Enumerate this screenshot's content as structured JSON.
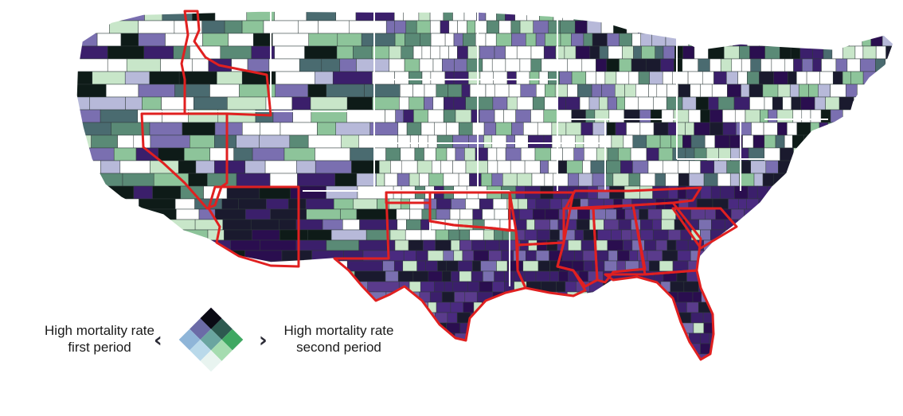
{
  "legend": {
    "left_label_line1": "High mortality rate",
    "left_label_line2": "first period",
    "right_label_line1": "High mortality rate",
    "right_label_line2": "second period",
    "bivariate_colors": [
      [
        "#e8f4f0",
        "#b9d9ea",
        "#8fb5d8"
      ],
      [
        "#a5dcb0",
        "#6aa5a0",
        "#6b6ba7"
      ],
      [
        "#3fa862",
        "#2d5a50",
        "#5a1b6b"
      ]
    ],
    "top_color": "#0a0a14"
  },
  "highlight": {
    "outline_color": "#e02020",
    "highlighted_states": [
      "Idaho",
      "Nevada",
      "Arizona",
      "Texas",
      "Oklahoma",
      "Louisiana",
      "Arkansas",
      "Mississippi",
      "Alabama",
      "Georgia",
      "Tennessee",
      "South Carolina",
      "Florida"
    ]
  },
  "map": {
    "county_palette": [
      "#ffffff",
      "#ffffff",
      "#ffffff",
      "#c8e6c9",
      "#8dc49a",
      "#5a8a76",
      "#4a6b70",
      "#7a6fb0",
      "#3b1f6b",
      "#2a0e4f",
      "#1a1a2e",
      "#0e1b18",
      "#b7b9d9",
      "#ffffff"
    ],
    "border_color": "#ffffff"
  }
}
